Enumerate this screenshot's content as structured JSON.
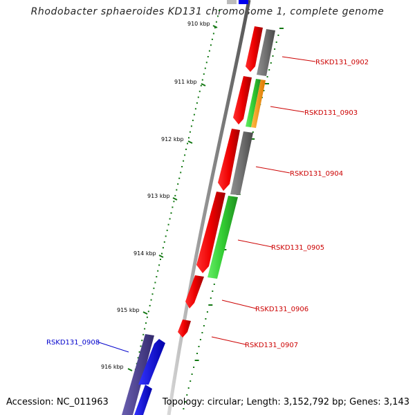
{
  "title": "Rhodobacter sphaeroides KD131 chromosome 1, complete genome",
  "footer": {
    "accession": "Accession: NC_011963",
    "summary": "Topology: circular; Length: 3,152,792 bp; Genes: 3,143"
  },
  "ticks": [
    "910 kbp",
    "911 kbp",
    "912 kbp",
    "913 kbp",
    "914 kbp",
    "915 kbp",
    "916 kbp"
  ],
  "genes": [
    {
      "label": "RSKD131_0902",
      "color": "#cc0000"
    },
    {
      "label": "RSKD131_0903",
      "color": "#cc0000"
    },
    {
      "label": "RSKD131_0904",
      "color": "#cc0000"
    },
    {
      "label": "RSKD131_0905",
      "color": "#cc0000"
    },
    {
      "label": "RSKD131_0906",
      "color": "#cc0000"
    },
    {
      "label": "RSKD131_0907",
      "color": "#cc0000"
    },
    {
      "label": "RSKD131_0908",
      "color": "#0000cc"
    }
  ],
  "colors": {
    "red_feature": "#ee0000",
    "grey_feature": "#707070",
    "green_feature": "#33cc33",
    "orange_feature": "#ff9900",
    "blue_feature": "#0000ee",
    "navy_feature": "#4a3f8f",
    "backbone": "#888888",
    "tick_green": "#117711"
  }
}
